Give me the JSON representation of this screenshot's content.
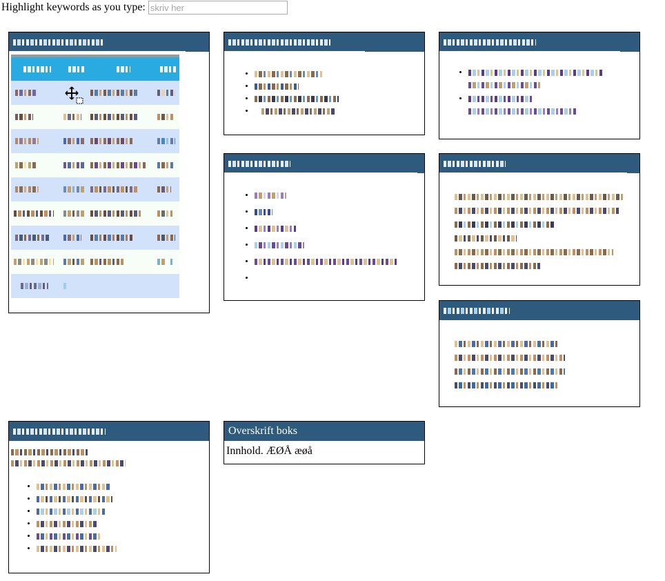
{
  "search": {
    "label": "Highlight keywords as you type:",
    "placeholder": "skriv her",
    "value": ""
  },
  "last_box": {
    "title": "Overskrift boks",
    "content": "Innhold. ÆØÅ æøå"
  },
  "colors": {
    "header_bg": "#2e5a7e",
    "table_header": "#29abe2",
    "row_odd": "#d1e2fa",
    "row_even": "#f7fdf7"
  },
  "icons": {
    "cursor": "move-cursor-icon"
  },
  "note": ""
}
